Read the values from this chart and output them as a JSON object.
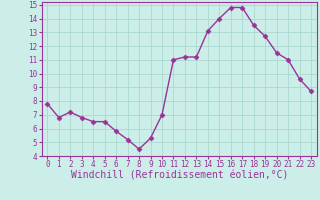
{
  "x": [
    0,
    1,
    2,
    3,
    4,
    5,
    6,
    7,
    8,
    9,
    10,
    11,
    12,
    13,
    14,
    15,
    16,
    17,
    18,
    19,
    20,
    21,
    22,
    23
  ],
  "y": [
    7.8,
    6.8,
    7.2,
    6.8,
    6.5,
    6.5,
    5.8,
    5.2,
    4.5,
    5.3,
    7.0,
    11.0,
    11.2,
    11.2,
    13.1,
    14.0,
    14.8,
    14.8,
    13.5,
    12.7,
    11.5,
    11.0,
    9.6,
    8.7
  ],
  "line_color": "#993399",
  "marker": "D",
  "markersize": 2.5,
  "linewidth": 1.0,
  "bg_color": "#cceee8",
  "grid_color": "#aad8d0",
  "xlabel": "Windchill (Refroidissement éolien,°C)",
  "xlabel_fontsize": 7,
  "xlim": [
    -0.5,
    23.5
  ],
  "ylim": [
    4,
    15.2
  ],
  "yticks": [
    4,
    5,
    6,
    7,
    8,
    9,
    10,
    11,
    12,
    13,
    14,
    15
  ],
  "xticks": [
    0,
    1,
    2,
    3,
    4,
    5,
    6,
    7,
    8,
    9,
    10,
    11,
    12,
    13,
    14,
    15,
    16,
    17,
    18,
    19,
    20,
    21,
    22,
    23
  ],
  "tick_fontsize": 5.5,
  "axis_color": "#993399",
  "spine_color": "#993399"
}
